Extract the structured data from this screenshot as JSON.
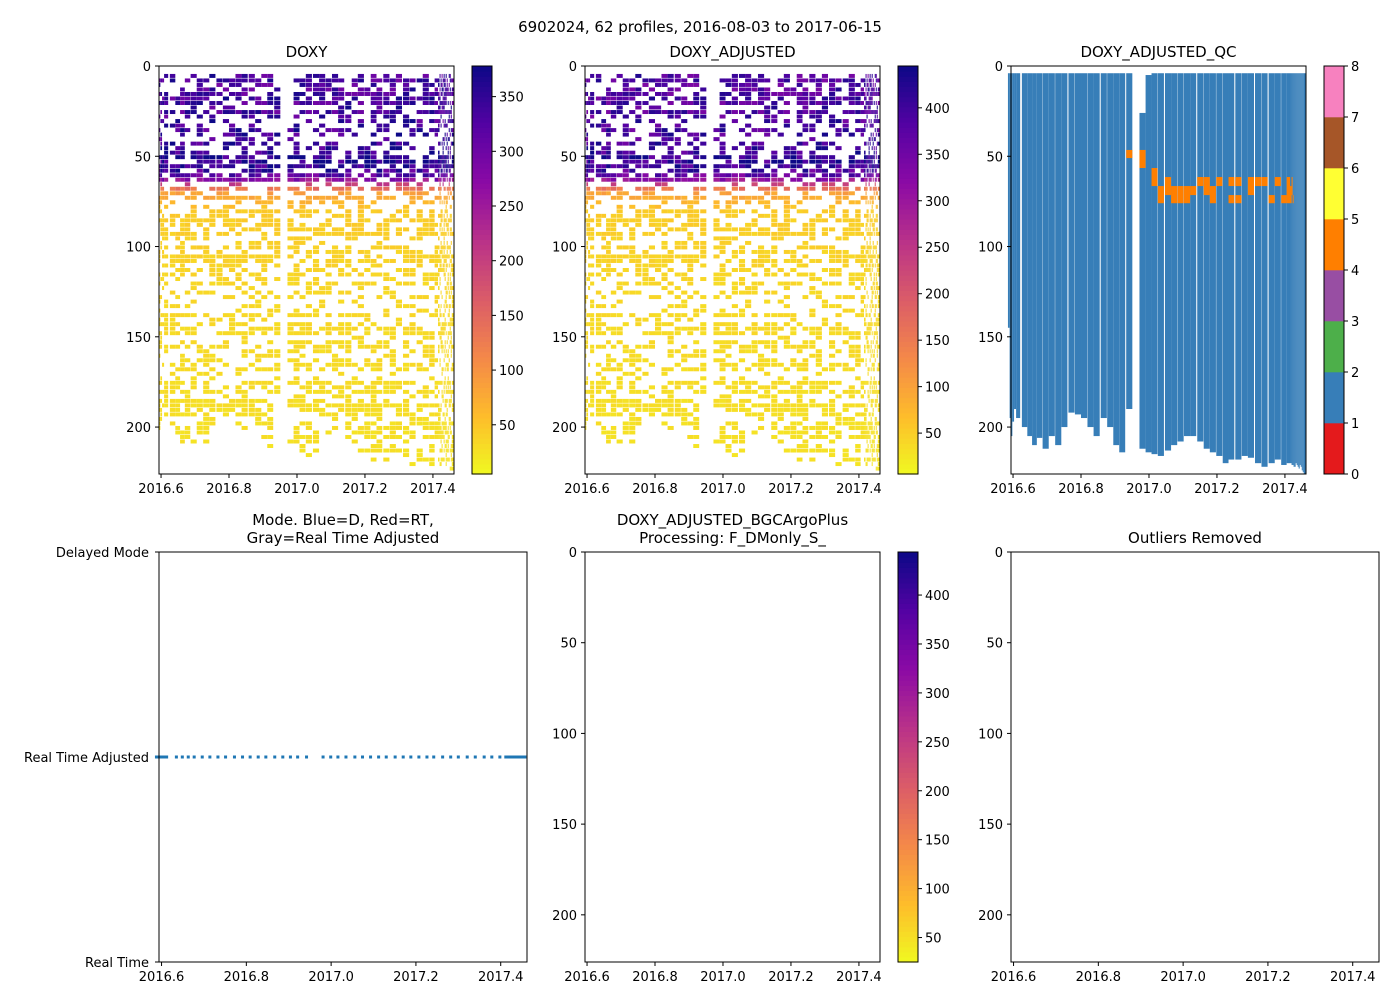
{
  "chart_data": {
    "suptitle": "6902024, 62 profiles, 2016-08-03 to 2017-06-15",
    "type": "heatmap",
    "xlim": [
      2016.594,
      2017.462
    ],
    "x_ticks": [
      "2016.6",
      "2016.8",
      "2017.0",
      "2017.2",
      "2017.4"
    ],
    "x_tick_values": [
      2016.6,
      2016.8,
      2017.0,
      2017.2,
      2017.4
    ],
    "depth_ylim": [
      226,
      0
    ],
    "depth_ticks": [
      "0",
      "50",
      "100",
      "150",
      "200"
    ],
    "depth_tick_values": [
      0,
      50,
      100,
      150,
      200
    ],
    "profile_times": [
      2016.588,
      2016.592,
      2016.596,
      2016.6,
      2016.606,
      2016.612,
      2016.635,
      2016.649,
      2016.663,
      2016.677,
      2016.696,
      2016.714,
      2016.733,
      2016.751,
      2016.772,
      2016.791,
      2016.809,
      2016.828,
      2016.846,
      2016.867,
      2016.886,
      2016.904,
      2016.921,
      2016.942,
      2016.981,
      2016.999,
      2017.016,
      2017.035,
      2017.056,
      2017.074,
      2017.093,
      2017.112,
      2017.13,
      2017.151,
      2017.17,
      2017.188,
      2017.207,
      2017.226,
      2017.242,
      2017.263,
      2017.282,
      2017.3,
      2017.321,
      2017.34,
      2017.361,
      2017.379,
      2017.398,
      2017.412,
      2017.418,
      2017.421,
      2017.424,
      2017.427,
      2017.43,
      2017.433,
      2017.436,
      2017.439,
      2017.442,
      2017.445,
      2017.448,
      2017.451,
      2017.454,
      2017.457
    ],
    "profile_top_depth": [
      4,
      4,
      4,
      4,
      4,
      4,
      4,
      4,
      4,
      4,
      4,
      4,
      4,
      4,
      4,
      4,
      4,
      4,
      4,
      4,
      4,
      4,
      4,
      4,
      26,
      5,
      4,
      4,
      4,
      4,
      4,
      4,
      4,
      4,
      4,
      4,
      4,
      4,
      4,
      4,
      4,
      4,
      4,
      4,
      4,
      4,
      4,
      4,
      4,
      4,
      4,
      4,
      4,
      4,
      4,
      4,
      4,
      4,
      4,
      4,
      4,
      4
    ],
    "profile_max_depth": [
      145,
      195,
      205,
      197,
      190,
      195,
      200,
      205,
      210,
      206,
      212,
      205,
      210,
      200,
      192,
      193,
      195,
      200,
      205,
      195,
      200,
      210,
      214,
      190,
      212,
      214,
      215,
      216,
      213,
      210,
      208,
      205,
      205,
      208,
      212,
      214,
      216,
      220,
      218,
      218,
      216,
      217,
      220,
      222,
      220,
      218,
      221,
      220,
      220,
      221,
      221,
      222,
      222,
      220,
      221,
      222,
      223,
      221,
      222,
      224,
      225,
      226
    ],
    "doxy_typical_profile": {
      "depth": [
        0,
        40,
        55,
        62,
        66,
        70,
        80,
        120,
        226
      ],
      "value": [
        330,
        340,
        360,
        300,
        180,
        90,
        45,
        35,
        25
      ]
    },
    "doxy_adjusted_scale": 1.15,
    "panels": {
      "doxy": {
        "title": "DOXY",
        "colormap": "plasma_r",
        "clim": [
          5,
          378
        ],
        "cb_ticks": [
          "50",
          "100",
          "150",
          "200",
          "250",
          "300",
          "350"
        ],
        "cb_tick_values": [
          50,
          100,
          150,
          200,
          250,
          300,
          350
        ]
      },
      "doxy_adjusted": {
        "title": "DOXY_ADJUSTED",
        "colormap": "plasma_r",
        "clim": [
          6,
          445
        ],
        "cb_ticks": [
          "50",
          "100",
          "150",
          "200",
          "250",
          "300",
          "350",
          "400"
        ],
        "cb_tick_values": [
          50,
          100,
          150,
          200,
          250,
          300,
          350,
          400
        ]
      },
      "qc": {
        "title": "DOXY_ADJUSTED_QC",
        "colormap": "Set1",
        "clim": [
          0,
          8
        ],
        "cb_ticks": [
          "0",
          "1",
          "2",
          "3",
          "4",
          "5",
          "6",
          "7",
          "8"
        ],
        "cb_tick_values": [
          0,
          1,
          2,
          3,
          4,
          5,
          6,
          7,
          8
        ],
        "colors": [
          "#e41a1c",
          "#377eb8",
          "#4daf4a",
          "#984ea3",
          "#ff7f00",
          "#ffff33",
          "#a65628",
          "#f781bf",
          "#999999"
        ],
        "base_flag": 1,
        "flag4_cells": [
          [
            23,
            46.5,
            51
          ],
          [
            24,
            46.5,
            56.5
          ],
          [
            26,
            56.5,
            66.5
          ],
          [
            27,
            66.5,
            76
          ],
          [
            28,
            61.5,
            71.5
          ],
          [
            29,
            66.5,
            76
          ],
          [
            30,
            66.5,
            76
          ],
          [
            31,
            66.5,
            76
          ],
          [
            32,
            66.5,
            71.5
          ],
          [
            33,
            61.5,
            66.5
          ],
          [
            34,
            61.5,
            71.5
          ],
          [
            35,
            66.5,
            76
          ],
          [
            36,
            61.5,
            66.5
          ],
          [
            38,
            61.5,
            66.5
          ],
          [
            38,
            71.5,
            76
          ],
          [
            39,
            61.5,
            66.5
          ],
          [
            39,
            71.5,
            76
          ],
          [
            41,
            61.5,
            71.5
          ],
          [
            42,
            61.5,
            66.5
          ],
          [
            43,
            61.5,
            66.5
          ],
          [
            44,
            71.5,
            76
          ],
          [
            45,
            61.5,
            66.5
          ],
          [
            46,
            71.5,
            76
          ],
          [
            47,
            61.5,
            76
          ],
          [
            48,
            66.5,
            76
          ],
          [
            49,
            61.5,
            71.5
          ],
          [
            50,
            71.5,
            76
          ]
        ]
      },
      "mode": {
        "title_lines": [
          "Mode. Blue=D, Red=RT,",
          "Gray=Real Time Adjusted"
        ],
        "y_categories": [
          "Real Time",
          "Real Time Adjusted",
          "Delayed Mode"
        ],
        "ylim": [
          0,
          2
        ],
        "point_value": 1,
        "point_color": "#1f77b4"
      },
      "bgc": {
        "title_lines": [
          "DOXY_ADJUSTED_BGCArgoPlus",
          "Processing: F_DMonly_S_"
        ],
        "colormap": "plasma_r",
        "clim": [
          25,
          444
        ],
        "cb_ticks": [
          "50",
          "100",
          "150",
          "200",
          "250",
          "300",
          "350",
          "400"
        ],
        "cb_tick_values": [
          50,
          100,
          150,
          200,
          250,
          300,
          350,
          400
        ]
      },
      "outliers": {
        "title": "Outliers Removed"
      }
    }
  }
}
